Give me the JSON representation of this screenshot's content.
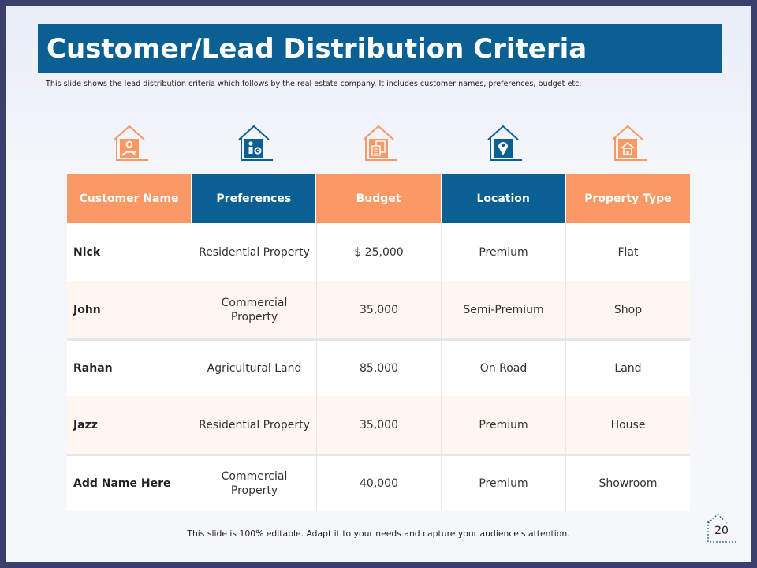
{
  "title": "Customer/Lead Distribution Criteria",
  "subtitle": "This slide shows the lead distribution criteria which follows by the real estate company. It includes customer names, preferences, budget etc.",
  "icons": [
    "house-person-icon",
    "house-settings-icon",
    "house-calculator-icon",
    "house-location-icon",
    "house-home-icon"
  ],
  "colors": {
    "orange": "#fb9966",
    "blue": "#0a5f93"
  },
  "table": {
    "headers": [
      "Customer Name",
      "Preferences",
      "Budget",
      "Location",
      "Property Type"
    ],
    "rows": [
      [
        "Nick",
        "Residential Property",
        "$ 25,000",
        "Premium",
        "Flat"
      ],
      [
        "John",
        "Commercial Property",
        "35,000",
        "Semi-Premium",
        "Shop"
      ],
      [
        "Rahan",
        "Agricultural Land",
        "85,000",
        "On Road",
        "Land"
      ],
      [
        "Jazz",
        "Residential Property",
        "35,000",
        "Premium",
        "House"
      ],
      [
        "Add Name Here",
        "Commercial Property",
        "40,000",
        "Premium",
        "Showroom"
      ]
    ]
  },
  "footer": "This slide is 100% editable. Adapt it to your needs and capture your audience's attention.",
  "page_number": "20"
}
